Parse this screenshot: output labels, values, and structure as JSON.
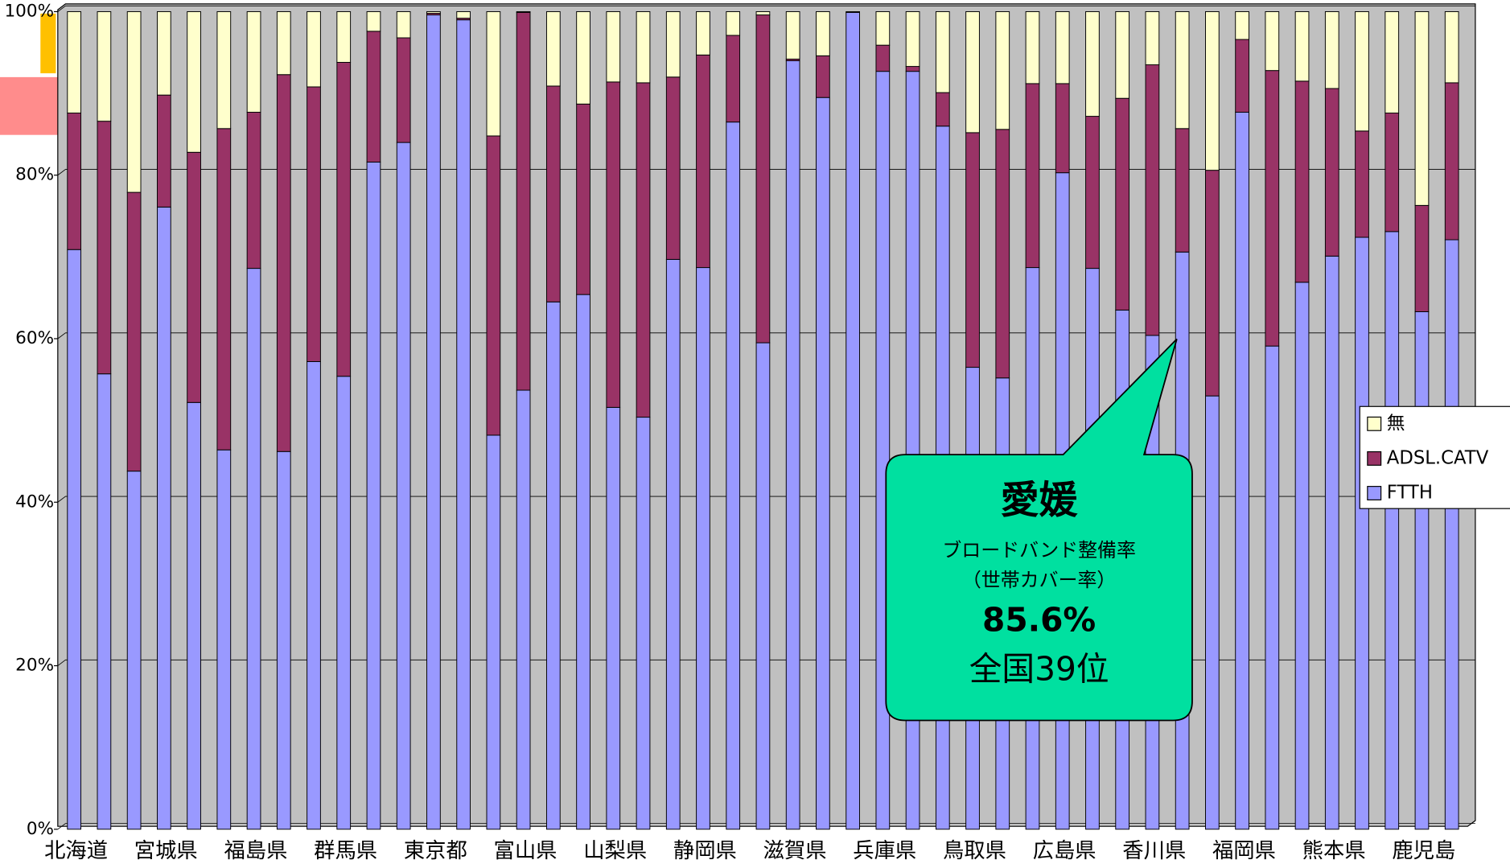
{
  "chart_data": {
    "type": "stacked_bar",
    "categories": [
      "北海道",
      null,
      null,
      "宮城県",
      null,
      null,
      "福島県",
      null,
      null,
      "群馬県",
      null,
      null,
      "東京都",
      null,
      null,
      "富山県",
      null,
      null,
      "山梨県",
      null,
      null,
      "静岡県",
      null,
      null,
      "滋賀県",
      null,
      null,
      "兵庫県",
      null,
      null,
      "鳥取県",
      null,
      null,
      "広島県",
      null,
      null,
      "香川県",
      null,
      null,
      "福岡県",
      null,
      null,
      "熊本県",
      null,
      null,
      "鹿児島",
      null
    ],
    "series": [
      {
        "name": "FTTH",
        "color": "#9999ff",
        "values": [
          70.9,
          55.7,
          43.8,
          76.1,
          52.2,
          46.4,
          68.6,
          46.2,
          57.2,
          55.4,
          81.6,
          84.0,
          99.6,
          99.0,
          48.2,
          53.7,
          64.5,
          65.4,
          51.6,
          50.4,
          69.7,
          68.7,
          86.5,
          59.5,
          94.0,
          89.5,
          99.9,
          92.7,
          92.7,
          86.0,
          56.5,
          55.2,
          68.7,
          80.3,
          68.6,
          63.5,
          60.4,
          70.6,
          53.0,
          87.7,
          59.1,
          66.9,
          70.1,
          72.4,
          73.1,
          63.3,
          72.1
        ]
      },
      {
        "name": "ADSL.CATV",
        "color": "#993366",
        "values": [
          16.7,
          30.9,
          34.1,
          13.7,
          30.6,
          39.3,
          19.1,
          46.1,
          33.6,
          38.4,
          16.0,
          12.8,
          0.2,
          0.2,
          36.6,
          46.2,
          26.4,
          23.3,
          39.8,
          40.9,
          22.3,
          26.0,
          10.6,
          40.1,
          0.2,
          5.1,
          0.0,
          3.2,
          0.6,
          4.1,
          28.7,
          30.4,
          22.5,
          10.9,
          18.6,
          25.9,
          33.1,
          15.1,
          27.6,
          8.9,
          33.7,
          24.6,
          20.5,
          13.0,
          14.5,
          13.0,
          19.2
        ]
      },
      {
        "name": "無",
        "color": "#ffffcc",
        "values": [
          12.4,
          13.4,
          22.1,
          10.2,
          17.2,
          14.3,
          12.3,
          7.7,
          9.2,
          6.2,
          2.4,
          3.2,
          0.2,
          0.8,
          15.2,
          0.1,
          9.1,
          11.3,
          8.6,
          8.7,
          8.0,
          5.3,
          2.9,
          0.4,
          5.8,
          5.4,
          0.1,
          4.1,
          6.7,
          9.9,
          14.8,
          14.4,
          8.8,
          8.8,
          12.8,
          10.6,
          6.5,
          14.3,
          19.4,
          3.4,
          7.2,
          8.5,
          9.4,
          14.6,
          12.4,
          23.7,
          8.7
        ]
      }
    ],
    "ylim": [
      0,
      100
    ],
    "yticks": [
      {
        "value": 0,
        "label": "0%"
      },
      {
        "value": 20,
        "label": "20%"
      },
      {
        "value": 40,
        "label": "40%"
      },
      {
        "value": 60,
        "label": "60%"
      },
      {
        "value": 80,
        "label": "80%"
      },
      {
        "value": 100,
        "label": "100%"
      }
    ],
    "grid": true,
    "legend": "right",
    "annotations": [
      "愛媛",
      "ブロードバンド整備率",
      "（世帯カバー率）",
      "85.6%",
      "全国39位"
    ]
  }
}
